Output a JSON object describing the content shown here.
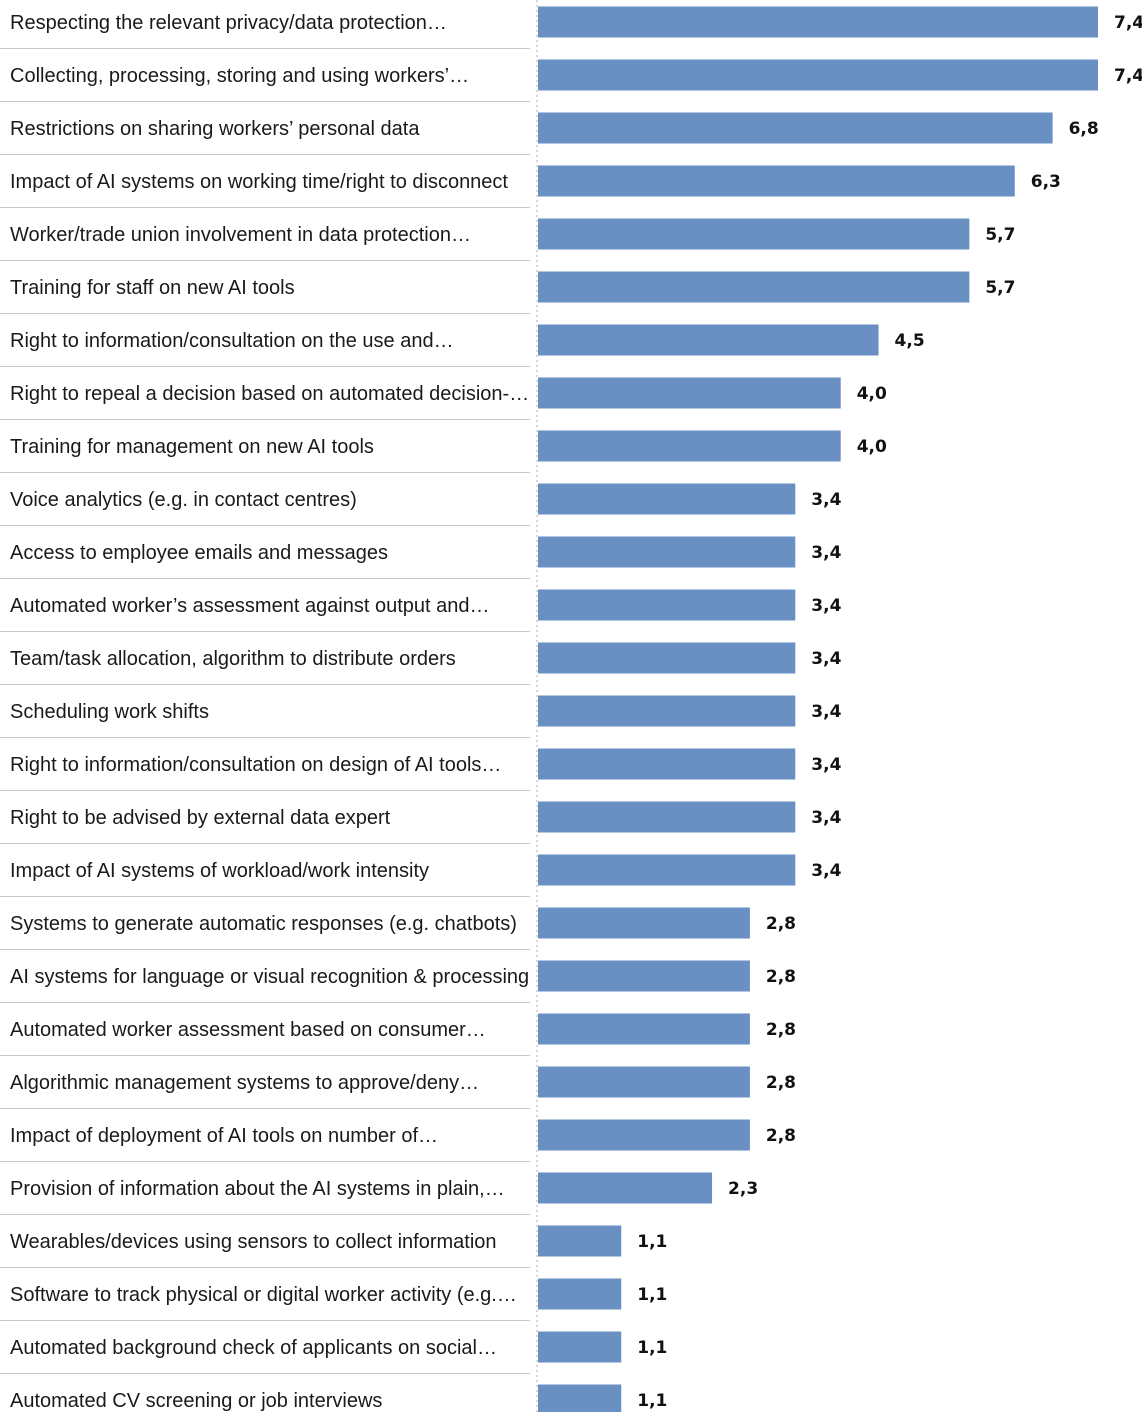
{
  "chart_data": {
    "type": "bar",
    "orientation": "horizontal",
    "title": "",
    "xlabel": "",
    "ylabel": "",
    "xlim": [
      0,
      7.4
    ],
    "grid": false,
    "legend": "none",
    "bar_color": "#6a8fc3",
    "decimal_separator": ",",
    "categories": [
      "Respecting the relevant privacy/data protection…",
      "Collecting, processing, storing and using workers’…",
      "Restrictions on sharing workers’ personal data",
      "Impact of AI systems on working time/right to disconnect",
      "Worker/trade union involvement in data protection…",
      "Training for staff on new AI tools",
      "Right to information/consultation on the use and…",
      "Right to repeal a decision based on automated decision-…",
      "Training for management on new AI tools",
      "Voice analytics (e.g. in contact centres)",
      "Access to employee emails and messages",
      "Automated worker’s assessment against output and…",
      "Team/task allocation, algorithm to distribute orders",
      "Scheduling work shifts",
      "Right to information/consultation on design of AI tools…",
      "Right to be advised by external data expert",
      "Impact of AI systems of workload/work intensity",
      "Systems to generate automatic responses (e.g. chatbots)",
      "AI systems for language or visual recognition & processing",
      "Automated worker assessment based on consumer…",
      "Algorithmic management systems to approve/deny…",
      "Impact of deployment of AI tools on number of…",
      "Provision of information about the AI systems in plain,…",
      "Wearables/devices using sensors to collect information",
      "Software to track physical or digital worker activity (e.g.…",
      "Automated background check of applicants on social…",
      "Automated CV screening or job interviews"
    ],
    "values": [
      7.4,
      7.4,
      6.8,
      6.3,
      5.7,
      5.7,
      4.5,
      4.0,
      4.0,
      3.4,
      3.4,
      3.4,
      3.4,
      3.4,
      3.4,
      3.4,
      3.4,
      2.8,
      2.8,
      2.8,
      2.8,
      2.8,
      2.3,
      1.1,
      1.1,
      1.1,
      1.1
    ]
  }
}
